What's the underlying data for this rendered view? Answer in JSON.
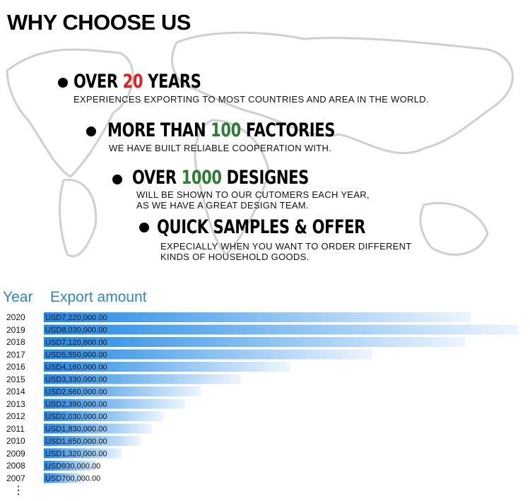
{
  "title": "WHY CHOOSE US",
  "points": [
    {
      "before": "OVER",
      "highlight": "20",
      "highlight_color": "red",
      "after": "YEARS",
      "text": [
        "EXPERIENCES EXPORTING TO MOST COUNTRIES AND AREA IN THE WORLD."
      ]
    },
    {
      "before": "MORE THAN",
      "highlight": "100",
      "highlight_color": "green",
      "after": "FACTORIES",
      "text": [
        "WE HAVE BUILT RELIABLE COOPERATION WITH."
      ]
    },
    {
      "before": "OVER",
      "highlight": "1000",
      "highlight_color": "green",
      "after": "DESIGNES",
      "text": [
        "WILL BE SHOWN TO OUR CUTOMERS EACH YEAR,",
        "AS WE HAVE A GREAT DESIGN TEAM."
      ]
    },
    {
      "before": "QUICK SAMPLES & OFFER",
      "text": [
        "EXPECIALLY WHEN YOU WANT TO ORDER DIFFERENT",
        "KINDS OF HOUSEHOLD GOODS."
      ]
    }
  ],
  "chart_data": {
    "type": "bar",
    "orientation": "horizontal",
    "category_header": "Year",
    "value_header": "Export amount",
    "categories": [
      "2020",
      "2019",
      "2018",
      "2017",
      "2016",
      "2015",
      "2014",
      "2013",
      "2012",
      "2011",
      "2010",
      "2009",
      "2008",
      "2007"
    ],
    "values": [
      7220000,
      8030000,
      7120800,
      5550000,
      4160000,
      3330000,
      2660000,
      2390000,
      2030000,
      1830000,
      1650000,
      1320000,
      930000,
      700000
    ],
    "value_labels": [
      "USD7,220,000.00",
      "USD8,030,000.00",
      "USD7,120,800.00",
      "USD5,550,000.00",
      "USD4,160,000.00",
      "USD3,330,000.00",
      "USD2,660,000.00",
      "USD2,390,000.00",
      "USD2,030,000.00",
      "USD1,830,000.00",
      "USD1,650,000.00",
      "USD1,320,000.00",
      "USD930,000.00",
      "USD700,000.00"
    ],
    "color": "#1e88e5",
    "more": "⋮"
  }
}
